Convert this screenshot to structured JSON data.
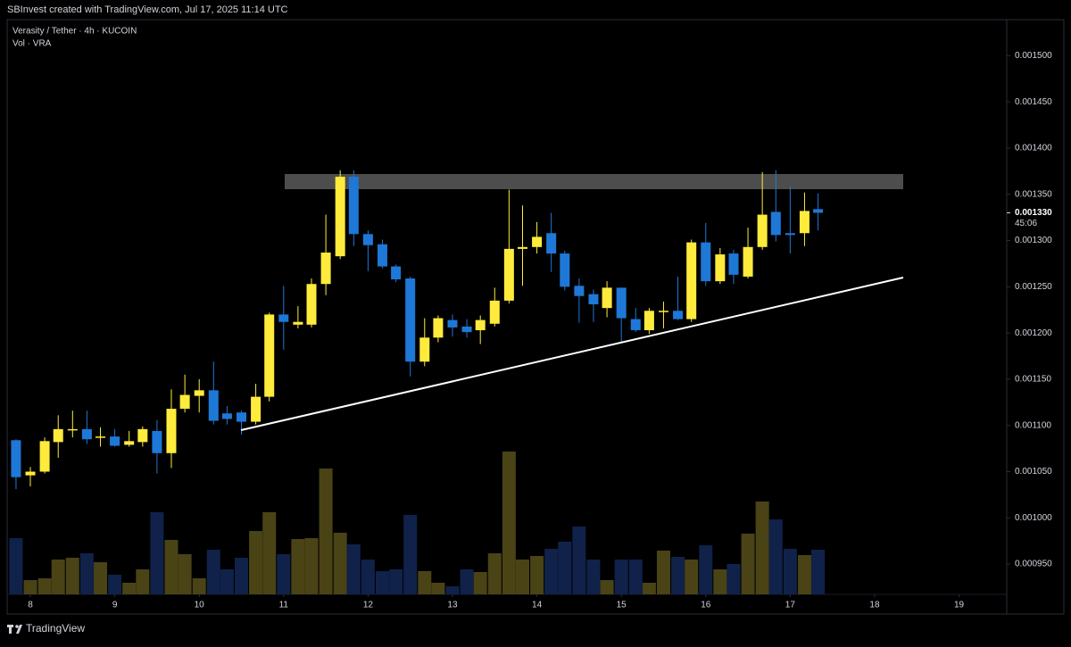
{
  "header": "SBInvest created with TradingView.com, Jul 17, 2025 11:14 UTC",
  "footer": "TradingView",
  "chart_data": {
    "type": "candlestick",
    "title": "Verasity / Tether · 4h · KUCOIN",
    "volume_title": "Vol · VRA",
    "up_color": "#ffeb3b",
    "down_color": "#1e78d7",
    "volume_up_color": "#4a4316",
    "volume_down_color": "#10224a",
    "x": [
      7.83,
      8,
      8.17,
      8.33,
      8.5,
      8.67,
      8.83,
      9,
      9.17,
      9.33,
      9.5,
      9.67,
      9.83,
      10,
      10.17,
      10.33,
      10.5,
      10.67,
      10.83,
      11,
      11.17,
      11.33,
      11.5,
      11.67,
      11.83,
      12,
      12.17,
      12.33,
      12.5,
      12.67,
      12.83,
      13,
      13.17,
      13.33,
      13.5,
      13.67,
      13.83,
      14,
      14.17,
      14.33,
      14.5,
      14.67,
      14.83,
      15,
      15.17,
      15.33,
      15.5,
      15.67,
      15.83,
      16,
      16.17,
      16.33,
      16.5,
      16.67,
      16.83,
      17,
      17.17,
      17.33
    ],
    "open": [
      0.001084,
      0.001046,
      0.00105,
      0.001082,
      0.001095,
      0.001096,
      0.001087,
      0.001088,
      0.001079,
      0.001082,
      0.001094,
      0.00107,
      0.001118,
      0.001132,
      0.001138,
      0.001113,
      0.001114,
      0.001104,
      0.001131,
      0.00122,
      0.001209,
      0.001209,
      0.001253,
      0.001283,
      0.001369,
      0.001307,
      0.001296,
      0.001272,
      0.001259,
      0.001169,
      0.001195,
      0.001214,
      0.001207,
      0.001203,
      0.00121,
      0.001235,
      0.001291,
      0.001293,
      0.001308,
      0.001286,
      0.001251,
      0.001242,
      0.001227,
      0.001249,
      0.001215,
      0.001203,
      0.001223,
      0.001224,
      0.001215,
      0.001298,
      0.001256,
      0.001286,
      0.001261,
      0.001293,
      0.001331,
      0.001308,
      0.001308,
      0.001334
    ],
    "high": [
      0.001085,
      0.001055,
      0.001087,
      0.001111,
      0.001116,
      0.001116,
      0.001098,
      0.001096,
      0.001094,
      0.001099,
      0.001106,
      0.001139,
      0.001155,
      0.00115,
      0.001169,
      0.001121,
      0.001116,
      0.001145,
      0.001222,
      0.001251,
      0.001229,
      0.001259,
      0.001328,
      0.001376,
      0.001376,
      0.001311,
      0.001301,
      0.001274,
      0.001261,
      0.001216,
      0.001219,
      0.00122,
      0.001215,
      0.001219,
      0.001249,
      0.001355,
      0.001338,
      0.00132,
      0.00133,
      0.001289,
      0.001259,
      0.001247,
      0.001256,
      0.001249,
      0.001227,
      0.001227,
      0.001234,
      0.001261,
      0.001301,
      0.001319,
      0.001292,
      0.00129,
      0.001314,
      0.001374,
      0.001376,
      0.001358,
      0.001352,
      0.001351
    ],
    "low": [
      0.001031,
      0.001034,
      0.001048,
      0.001065,
      0.001087,
      0.00108,
      0.001077,
      0.001077,
      0.001077,
      0.001077,
      0.001048,
      0.001054,
      0.001114,
      0.001114,
      0.001101,
      0.001101,
      0.00109,
      0.001101,
      0.001126,
      0.001182,
      0.001205,
      0.001206,
      0.001241,
      0.00128,
      0.001294,
      0.001267,
      0.00127,
      0.001255,
      0.001153,
      0.001164,
      0.00119,
      0.001196,
      0.001195,
      0.001188,
      0.001207,
      0.001232,
      0.001251,
      0.001286,
      0.001266,
      0.001246,
      0.001211,
      0.001212,
      0.001217,
      0.00119,
      0.001201,
      0.001199,
      0.001205,
      0.001214,
      0.001212,
      0.001251,
      0.001253,
      0.001253,
      0.001259,
      0.00129,
      0.001299,
      0.001286,
      0.001294,
      0.001311
    ],
    "close": [
      0.001044,
      0.00105,
      0.001083,
      0.001096,
      0.001096,
      0.001085,
      0.001088,
      0.001078,
      0.001083,
      0.001096,
      0.00107,
      0.001118,
      0.001133,
      0.001138,
      0.001105,
      0.001107,
      0.001104,
      0.001131,
      0.00122,
      0.001212,
      0.001212,
      0.001253,
      0.001287,
      0.001369,
      0.001307,
      0.001295,
      0.001272,
      0.001258,
      0.001169,
      0.001195,
      0.001216,
      0.001206,
      0.001201,
      0.001214,
      0.001235,
      0.001291,
      0.001293,
      0.001304,
      0.001286,
      0.00125,
      0.00124,
      0.001231,
      0.001249,
      0.001216,
      0.001203,
      0.001224,
      0.001224,
      0.001215,
      0.001298,
      0.001256,
      0.001285,
      0.001263,
      0.001293,
      0.001328,
      0.001306,
      0.001306,
      0.001332,
      0.00133
    ],
    "volume": [
      63,
      16,
      18,
      39,
      41,
      46,
      36,
      22,
      13,
      28,
      92,
      61,
      45,
      18,
      50,
      28,
      41,
      71,
      92,
      45,
      62,
      63,
      141,
      69,
      56,
      39,
      26,
      28,
      89,
      26,
      13,
      9,
      28,
      25,
      46,
      160,
      39,
      43,
      51,
      59,
      76,
      39,
      16,
      39,
      39,
      13,
      49,
      42,
      39,
      55,
      28,
      34,
      68,
      104,
      84,
      51,
      44,
      50
    ],
    "last_price": 0.00133,
    "last_price_label": "0.001330",
    "countdown": "45:06",
    "xlim": [
      7.725,
      19.565
    ],
    "xticks": [
      8,
      9,
      10,
      11,
      12,
      13,
      14,
      15,
      16,
      17,
      18,
      19
    ],
    "ylim": [
      0.000896,
      0.001539
    ],
    "yticks": [
      {
        "value": 0.00095,
        "label": "0.000950"
      },
      {
        "value": 0.001,
        "label": "0.001000"
      },
      {
        "value": 0.00105,
        "label": "0.001050"
      },
      {
        "value": 0.0011,
        "label": "0.001100"
      },
      {
        "value": 0.00115,
        "label": "0.001150"
      },
      {
        "value": 0.0012,
        "label": "0.001200"
      },
      {
        "value": 0.00125,
        "label": "0.001250"
      },
      {
        "value": 0.0013,
        "label": "0.001300"
      },
      {
        "value": 0.00135,
        "label": "0.001350"
      },
      {
        "value": 0.0014,
        "label": "0.001400"
      },
      {
        "value": 0.00145,
        "label": "0.001450"
      },
      {
        "value": 0.0015,
        "label": "0.001500"
      }
    ],
    "grid": false
  }
}
